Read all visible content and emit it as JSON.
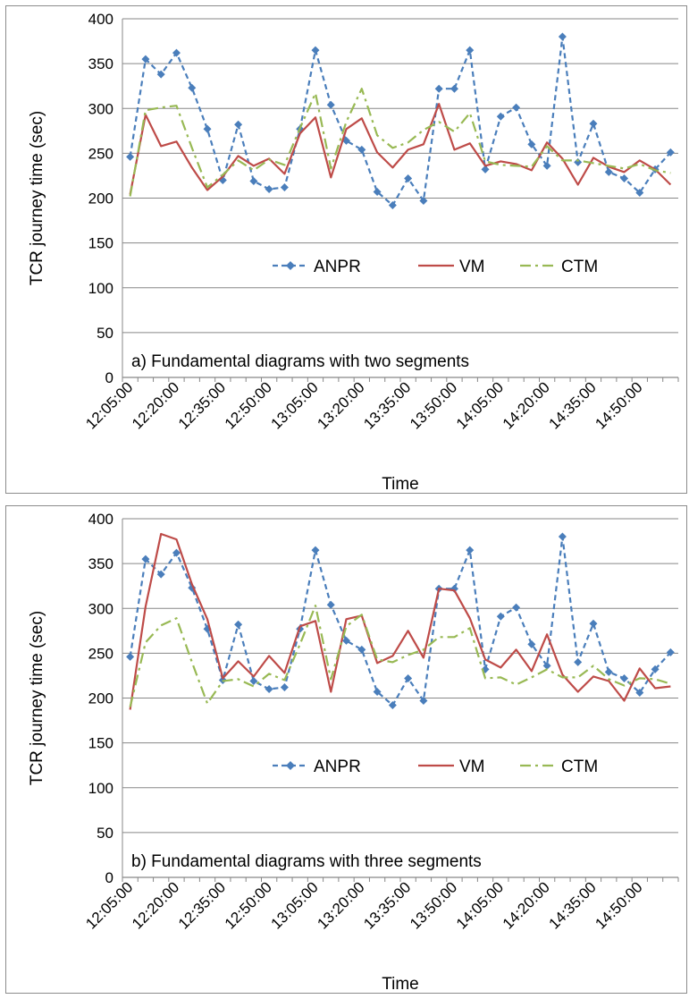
{
  "colors": {
    "ANPR": "#4a7ebb",
    "VM": "#be4b48",
    "CTM": "#98b954",
    "grid": "#878787"
  },
  "chart_data": [
    {
      "type": "line",
      "title": "",
      "annotation": "a) Fundamental diagrams with two segments",
      "xlabel": "Time",
      "ylabel": "TCR journey time (sec)",
      "ylim": [
        0,
        400
      ],
      "yticks": [
        "0",
        "50",
        "100",
        "150",
        "200",
        "250",
        "300",
        "350",
        "400"
      ],
      "xtick_labels": [
        "12:05:00",
        "12:20:00",
        "12:35:00",
        "12:50:00",
        "13:05:00",
        "13:20:00",
        "13:35:00",
        "13:50:00",
        "14:05:00",
        "14:20:00",
        "14:35:00",
        "14:50:00"
      ],
      "grid": true,
      "legend": "center",
      "series": [
        {
          "name": "ANPR",
          "style": "dashed-diamond",
          "values": [
            246,
            355,
            338,
            362,
            323,
            277,
            220,
            282,
            219,
            210,
            212,
            277,
            365,
            304,
            264,
            254,
            207,
            192,
            222,
            197,
            322,
            322,
            365,
            232,
            291,
            301,
            260,
            236,
            380,
            240,
            283,
            229,
            222,
            206,
            232,
            251
          ]
        },
        {
          "name": "VM",
          "style": "solid",
          "values": [
            204,
            293,
            258,
            263,
            234,
            209,
            224,
            247,
            236,
            244,
            227,
            272,
            290,
            223,
            277,
            289,
            251,
            234,
            254,
            260,
            305,
            254,
            261,
            236,
            241,
            238,
            231,
            262,
            244,
            215,
            245,
            235,
            229,
            242,
            232,
            215
          ]
        },
        {
          "name": "CTM",
          "style": "dashdot",
          "values": [
            202,
            298,
            301,
            303,
            256,
            212,
            226,
            242,
            231,
            243,
            237,
            278,
            317,
            233,
            285,
            322,
            270,
            256,
            262,
            276,
            285,
            274,
            295,
            241,
            237,
            236,
            235,
            258,
            242,
            242,
            239,
            236,
            233,
            238,
            231,
            228
          ]
        }
      ]
    },
    {
      "type": "line",
      "title": "",
      "annotation": "b) Fundamental diagrams with three segments",
      "xlabel": "Time",
      "ylabel": "TCR journey time (sec)",
      "ylim": [
        0,
        400
      ],
      "yticks": [
        "0",
        "50",
        "100",
        "150",
        "200",
        "250",
        "300",
        "350",
        "400"
      ],
      "xtick_labels": [
        "12:05:00",
        "12:20:00",
        "12:35:00",
        "12:50:00",
        "13:05:00",
        "13:20:00",
        "13:35:00",
        "13:50:00",
        "14:05:00",
        "14:20:00",
        "14:35:00",
        "14:50:00"
      ],
      "grid": true,
      "legend": "center",
      "series": [
        {
          "name": "ANPR",
          "style": "dashed-diamond",
          "values": [
            246,
            355,
            338,
            362,
            323,
            277,
            220,
            282,
            219,
            210,
            212,
            277,
            365,
            304,
            264,
            254,
            207,
            192,
            222,
            197,
            322,
            322,
            365,
            232,
            291,
            301,
            260,
            236,
            380,
            240,
            283,
            229,
            222,
            206,
            232,
            251
          ]
        },
        {
          "name": "VM",
          "style": "solid",
          "values": [
            187,
            302,
            383,
            377,
            327,
            288,
            222,
            241,
            224,
            247,
            228,
            280,
            286,
            207,
            288,
            292,
            239,
            247,
            275,
            245,
            322,
            320,
            289,
            243,
            234,
            254,
            230,
            271,
            226,
            207,
            224,
            219,
            197,
            233,
            211,
            213
          ]
        },
        {
          "name": "CTM",
          "style": "dashdot",
          "values": [
            190,
            262,
            281,
            289,
            240,
            194,
            219,
            221,
            213,
            227,
            220,
            260,
            303,
            221,
            280,
            293,
            243,
            240,
            248,
            254,
            268,
            268,
            278,
            222,
            223,
            215,
            223,
            232,
            223,
            223,
            236,
            221,
            214,
            222,
            221,
            216
          ]
        }
      ]
    }
  ]
}
